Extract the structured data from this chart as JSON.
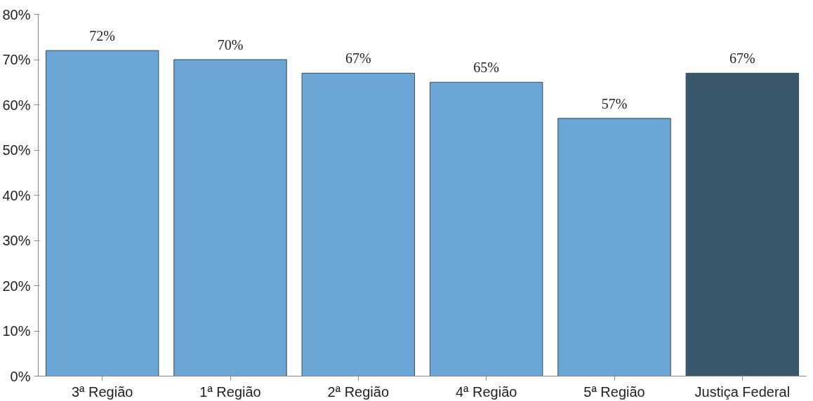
{
  "chart_data": {
    "type": "bar",
    "categories": [
      "3ª Região",
      "1ª Região",
      "2ª Região",
      "4ª Região",
      "5ª Região",
      "Justiça Federal"
    ],
    "values": [
      72,
      70,
      67,
      65,
      57,
      67
    ],
    "colors": [
      "#6ca6d4",
      "#6ca6d4",
      "#6ca6d4",
      "#6ca6d4",
      "#6ca6d4",
      "#3a566b"
    ],
    "value_labels": [
      "72%",
      "70%",
      "67%",
      "65%",
      "57%",
      "67%"
    ],
    "ylim": [
      0,
      80
    ],
    "yticks": [
      {
        "value": 0,
        "label": "0%"
      },
      {
        "value": 10,
        "label": "10%"
      },
      {
        "value": 20,
        "label": "20%"
      },
      {
        "value": 30,
        "label": "30%"
      },
      {
        "value": 40,
        "label": "40%"
      },
      {
        "value": 50,
        "label": "50%"
      },
      {
        "value": 60,
        "label": "60%"
      },
      {
        "value": 70,
        "label": "70%"
      },
      {
        "value": 80,
        "label": "80%"
      }
    ],
    "grid": false
  }
}
